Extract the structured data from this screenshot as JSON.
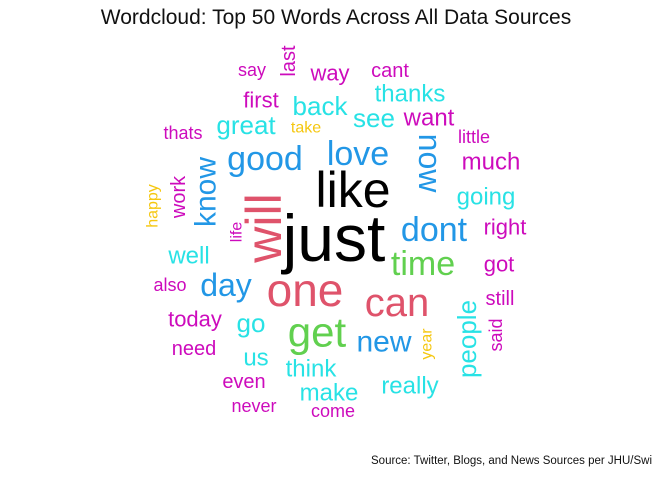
{
  "chart_data": {
    "type": "wordcloud",
    "title": "Wordcloud: Top 50 Words Across All Data Sources",
    "caption": "Source: Twitter, Blogs, and News Sources per JHU/Swi",
    "colors": {
      "black": "#000000",
      "red": "#df536b",
      "green": "#61d04f",
      "blue": "#2297e6",
      "cyan": "#28e2e5",
      "magenta": "#cd0bbc",
      "yellow": "#f5c710"
    },
    "words": [
      {
        "word": "just",
        "color": "black"
      },
      {
        "word": "like",
        "color": "black"
      },
      {
        "word": "will",
        "color": "red"
      },
      {
        "word": "one",
        "color": "red"
      },
      {
        "word": "can",
        "color": "red"
      },
      {
        "word": "get",
        "color": "green"
      },
      {
        "word": "time",
        "color": "green"
      },
      {
        "word": "dont",
        "color": "blue"
      },
      {
        "word": "good",
        "color": "blue"
      },
      {
        "word": "love",
        "color": "blue"
      },
      {
        "word": "now",
        "color": "blue"
      },
      {
        "word": "day",
        "color": "blue"
      },
      {
        "word": "new",
        "color": "blue"
      },
      {
        "word": "know",
        "color": "blue"
      },
      {
        "word": "people",
        "color": "cyan"
      },
      {
        "word": "great",
        "color": "cyan"
      },
      {
        "word": "back",
        "color": "cyan"
      },
      {
        "word": "see",
        "color": "cyan"
      },
      {
        "word": "go",
        "color": "cyan"
      },
      {
        "word": "us",
        "color": "cyan"
      },
      {
        "word": "think",
        "color": "cyan"
      },
      {
        "word": "make",
        "color": "cyan"
      },
      {
        "word": "really",
        "color": "cyan"
      },
      {
        "word": "well",
        "color": "cyan"
      },
      {
        "word": "going",
        "color": "cyan"
      },
      {
        "word": "thanks",
        "color": "cyan"
      },
      {
        "word": "want",
        "color": "magenta"
      },
      {
        "word": "much",
        "color": "magenta"
      },
      {
        "word": "right",
        "color": "magenta"
      },
      {
        "word": "got",
        "color": "magenta"
      },
      {
        "word": "today",
        "color": "magenta"
      },
      {
        "word": "first",
        "color": "magenta"
      },
      {
        "word": "way",
        "color": "magenta"
      },
      {
        "word": "cant",
        "color": "magenta"
      },
      {
        "word": "need",
        "color": "magenta"
      },
      {
        "word": "even",
        "color": "magenta"
      },
      {
        "word": "still",
        "color": "magenta"
      },
      {
        "word": "work",
        "color": "magenta"
      },
      {
        "word": "also",
        "color": "magenta"
      },
      {
        "word": "last",
        "color": "magenta"
      },
      {
        "word": "say",
        "color": "magenta"
      },
      {
        "word": "thats",
        "color": "magenta"
      },
      {
        "word": "little",
        "color": "magenta"
      },
      {
        "word": "never",
        "color": "magenta"
      },
      {
        "word": "come",
        "color": "magenta"
      },
      {
        "word": "said",
        "color": "magenta"
      },
      {
        "word": "life",
        "color": "magenta"
      },
      {
        "word": "take",
        "color": "yellow"
      },
      {
        "word": "happy",
        "color": "yellow"
      },
      {
        "word": "year",
        "color": "yellow"
      }
    ]
  }
}
